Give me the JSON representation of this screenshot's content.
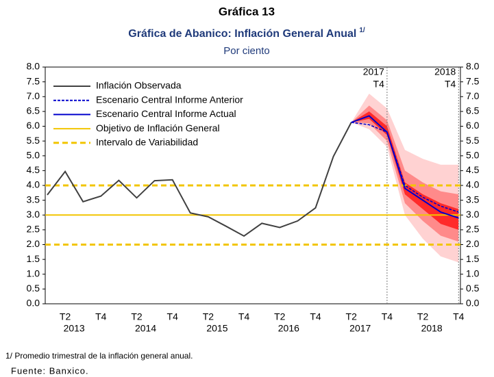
{
  "chart_data": {
    "type": "fan_line",
    "heading": "Gráfica 13",
    "title": "Gráfica de Abanico: Inflación General Anual",
    "title_note": "1/",
    "subtitle": "Por ciento",
    "categories": [
      null,
      "T2",
      null,
      "T4",
      null,
      "T2",
      null,
      "T4",
      null,
      "T2",
      null,
      "T4",
      null,
      "T2",
      null,
      "T4",
      null,
      "T2",
      null,
      "T4",
      null,
      "T2",
      null,
      "T4"
    ],
    "years": [
      "2013",
      "2014",
      "2015",
      "2016",
      "2017",
      "2018"
    ],
    "ylim": [
      0,
      8
    ],
    "yticks": [
      {
        "value": 0,
        "label": "0.0"
      },
      {
        "value": 0.5,
        "label": "0.5"
      },
      {
        "value": 1,
        "label": "1.0"
      },
      {
        "value": 1.5,
        "label": "1.5"
      },
      {
        "value": 2,
        "label": "2.0"
      },
      {
        "value": 2.5,
        "label": "2.5"
      },
      {
        "value": 3,
        "label": "3.0"
      },
      {
        "value": 3.5,
        "label": "3.5"
      },
      {
        "value": 4,
        "label": "4.0"
      },
      {
        "value": 4.5,
        "label": "4.5"
      },
      {
        "value": 5,
        "label": "5.0"
      },
      {
        "value": 5.5,
        "label": "5.5"
      },
      {
        "value": 6,
        "label": "6.0"
      },
      {
        "value": 6.5,
        "label": "6.5"
      },
      {
        "value": 7,
        "label": "7.0"
      },
      {
        "value": 7.5,
        "label": "7.5"
      },
      {
        "value": 8,
        "label": "8.0"
      }
    ],
    "series": [
      {
        "name": "Inflación Observada",
        "color": "#404040",
        "dash": false,
        "values": [
          3.68,
          4.47,
          3.45,
          3.64,
          4.17,
          3.58,
          4.16,
          4.19,
          3.07,
          2.94,
          2.62,
          2.29,
          2.72,
          2.58,
          2.8,
          3.24,
          4.98,
          6.13,
          null,
          null,
          null,
          null,
          null,
          null
        ]
      },
      {
        "name": "Escenario Central Informe Anterior",
        "color": "#0000cc",
        "dash": true,
        "values": [
          null,
          null,
          null,
          null,
          null,
          null,
          null,
          null,
          null,
          null,
          null,
          null,
          null,
          null,
          null,
          null,
          null,
          6.13,
          6.05,
          5.8,
          4.0,
          3.6,
          3.3,
          3.1
        ]
      },
      {
        "name": "Escenario Central Informe Actual",
        "color": "#0000cc",
        "dash": false,
        "values": [
          null,
          null,
          null,
          null,
          null,
          null,
          null,
          null,
          null,
          null,
          null,
          null,
          null,
          null,
          null,
          null,
          null,
          6.13,
          6.35,
          5.8,
          3.9,
          3.5,
          3.1,
          2.9
        ]
      }
    ],
    "reference_lines": [
      {
        "name": "Objetivo de Inflación General",
        "color": "#f2c500",
        "dash": false,
        "values": [
          3
        ]
      },
      {
        "name": "Intervalo de Variabilidad",
        "color": "#f2c500",
        "dash": true,
        "values": [
          2,
          4
        ]
      }
    ],
    "fan_bands": [
      {
        "color": "#ffd2d2",
        "lower": [
          null,
          null,
          null,
          null,
          null,
          null,
          null,
          null,
          null,
          null,
          null,
          null,
          null,
          null,
          null,
          null,
          null,
          6.13,
          5.9,
          5.3,
          3.0,
          2.2,
          1.6,
          1.4
        ],
        "upper": [
          null,
          null,
          null,
          null,
          null,
          null,
          null,
          null,
          null,
          null,
          null,
          null,
          null,
          null,
          null,
          null,
          null,
          6.13,
          7.1,
          6.6,
          5.2,
          4.9,
          4.7,
          4.7
        ]
      },
      {
        "color": "#ff8a8a",
        "lower": [
          null,
          null,
          null,
          null,
          null,
          null,
          null,
          null,
          null,
          null,
          null,
          null,
          null,
          null,
          null,
          null,
          null,
          6.13,
          6.1,
          5.5,
          3.4,
          2.8,
          2.3,
          2.1
        ],
        "upper": [
          null,
          null,
          null,
          null,
          null,
          null,
          null,
          null,
          null,
          null,
          null,
          null,
          null,
          null,
          null,
          null,
          null,
          6.13,
          6.7,
          6.2,
          4.5,
          4.1,
          3.8,
          3.7
        ]
      },
      {
        "color": "#ff2a2a",
        "lower": [
          null,
          null,
          null,
          null,
          null,
          null,
          null,
          null,
          null,
          null,
          null,
          null,
          null,
          null,
          null,
          null,
          null,
          6.13,
          6.25,
          5.7,
          3.7,
          3.2,
          2.7,
          2.5
        ],
        "upper": [
          null,
          null,
          null,
          null,
          null,
          null,
          null,
          null,
          null,
          null,
          null,
          null,
          null,
          null,
          null,
          null,
          null,
          6.13,
          6.5,
          6.0,
          4.1,
          3.7,
          3.4,
          3.2
        ]
      }
    ],
    "markers": [
      {
        "index": 19,
        "year": "2017",
        "quarter": "T4"
      },
      {
        "index": 23,
        "year": "2018",
        "quarter": "T4"
      }
    ],
    "footnote": "1/ Promedio trimestral de la inflación general anual.",
    "source": "Fuente: Banxico."
  }
}
